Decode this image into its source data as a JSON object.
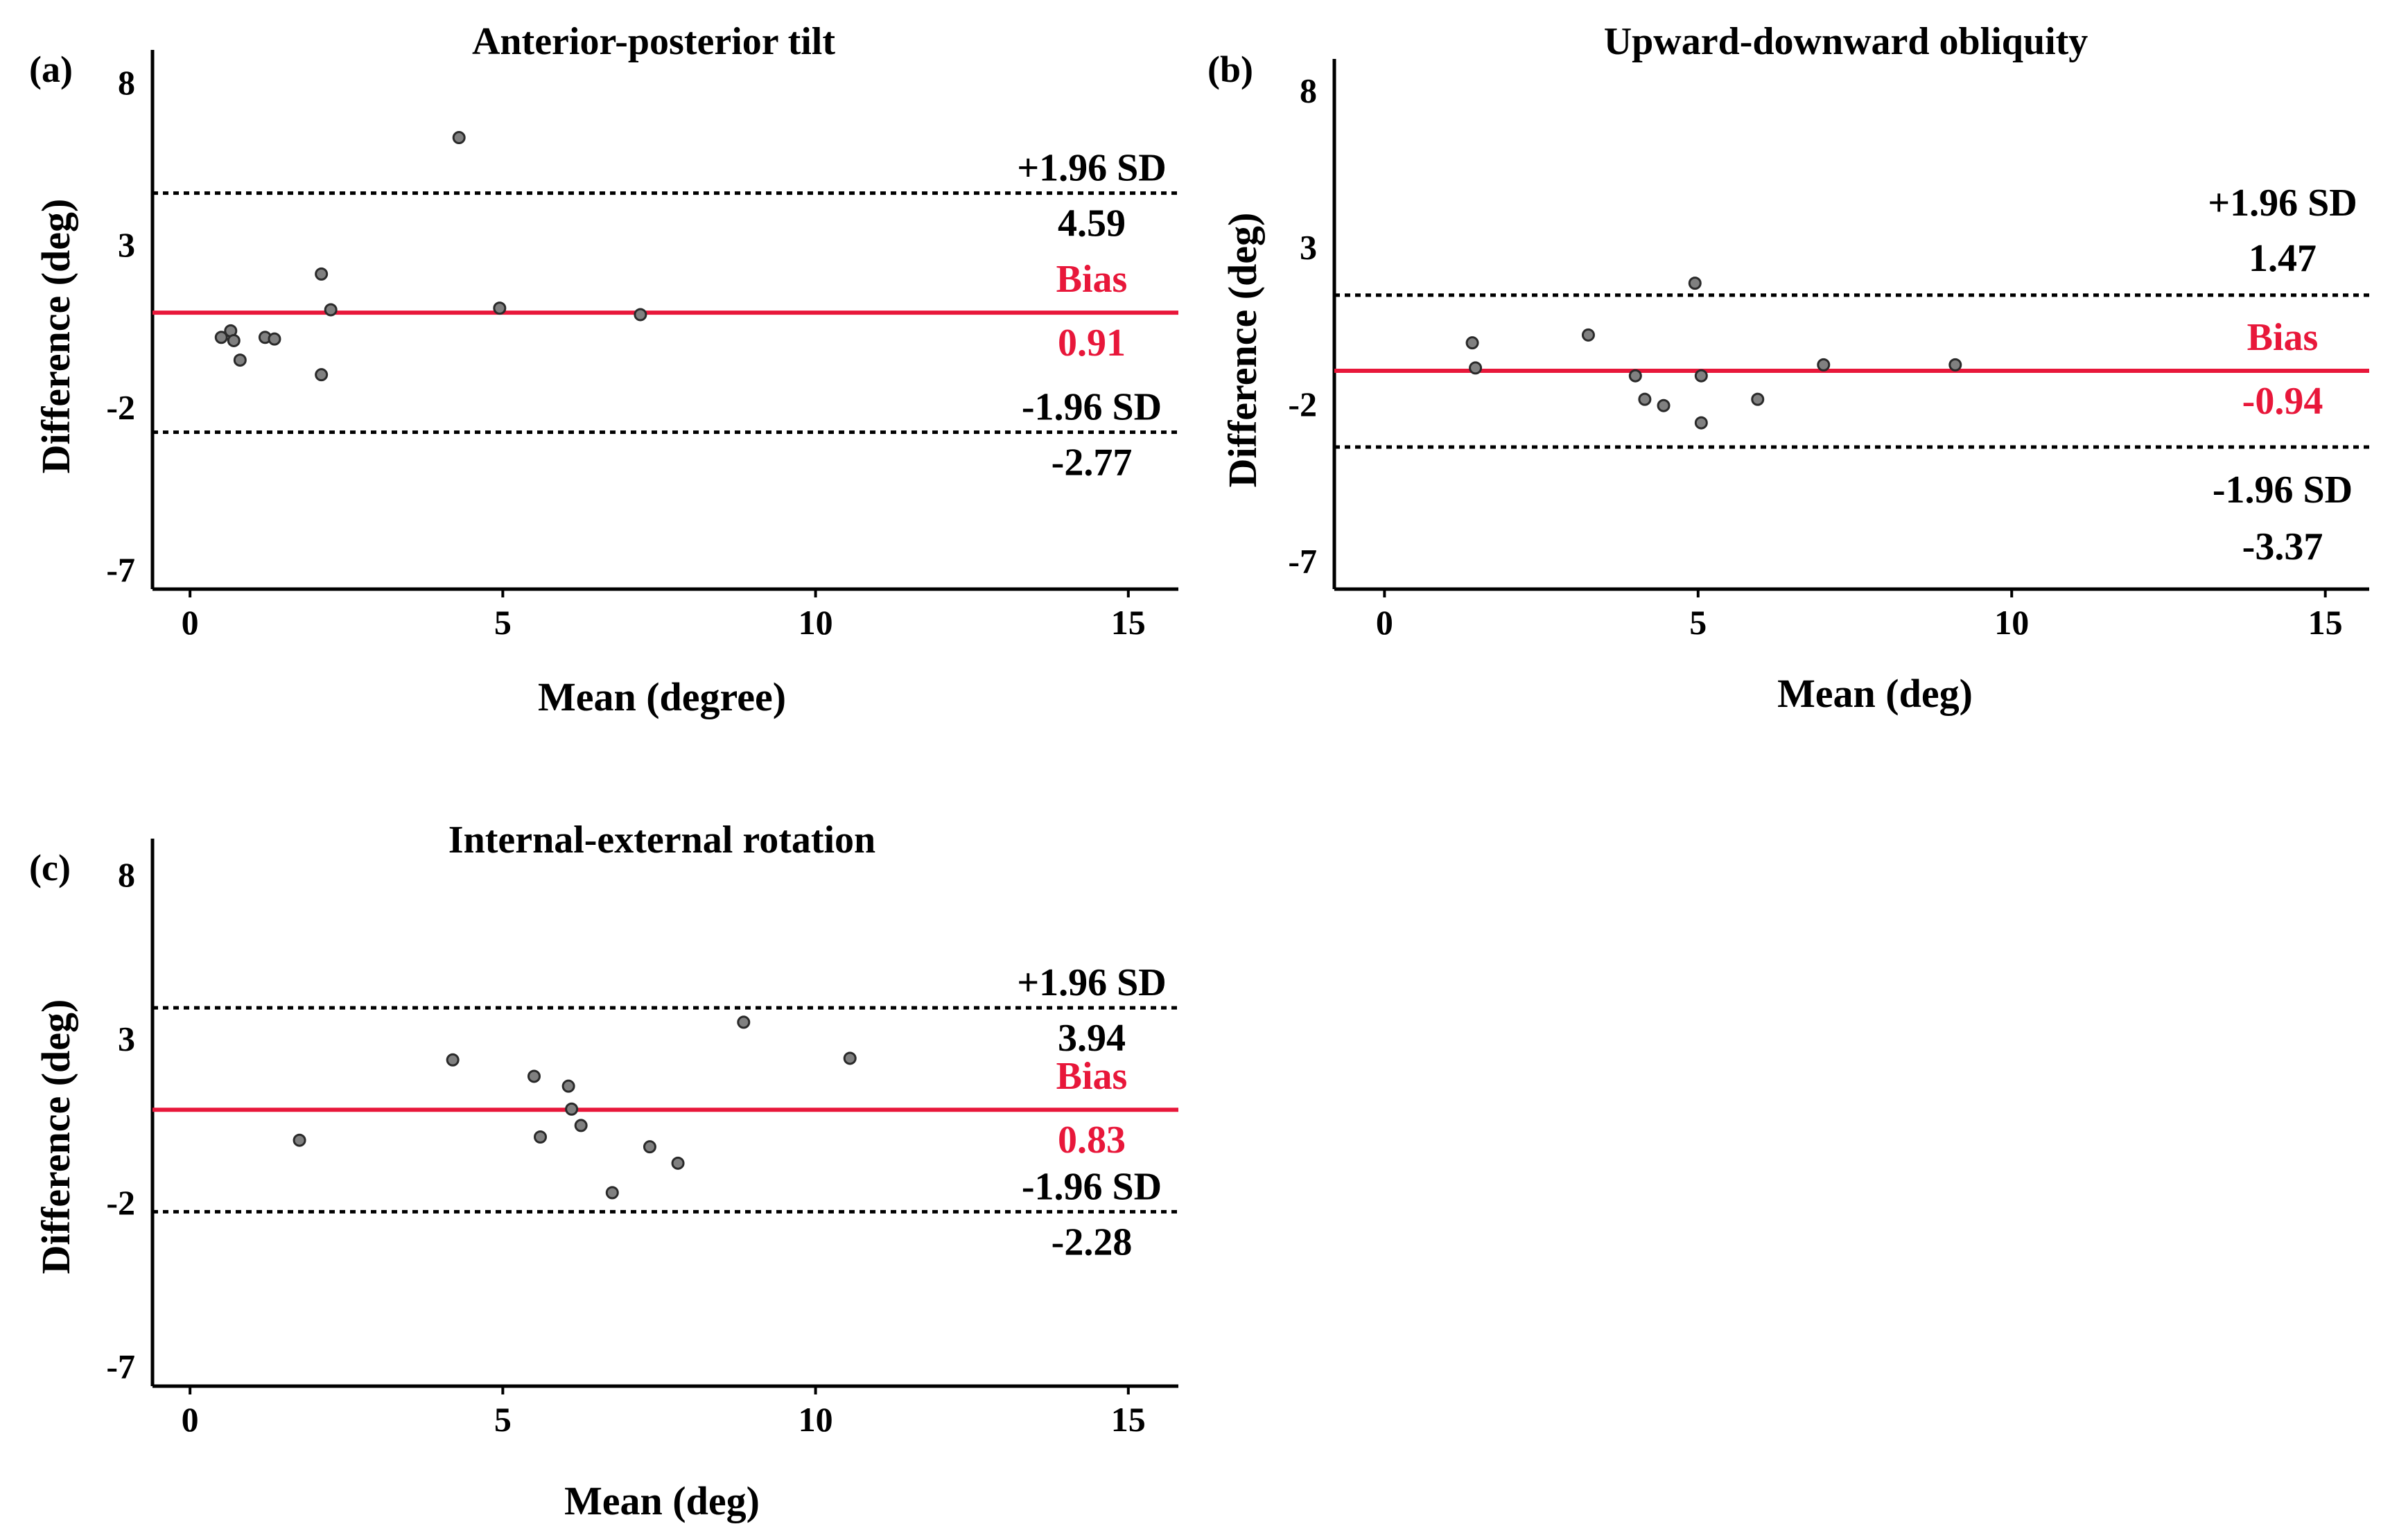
{
  "chart_data": [
    {
      "id": "a",
      "type": "scatter",
      "panel_label": "(a)",
      "title": "Anterior-posterior tilt",
      "xlabel": "Mean (degree)",
      "ylabel": "Difference (deg)",
      "xlim": [
        -0.6,
        15.8
      ],
      "ylim": [
        -7.6,
        9.0
      ],
      "xticks": [
        0,
        5,
        10,
        15
      ],
      "yticks": [
        8,
        3,
        -2,
        -7
      ],
      "grid": false,
      "bias": {
        "value": 0.91,
        "label": "Bias",
        "value_label": "0.91",
        "color": "#e8173a"
      },
      "upper_loa": {
        "value": 4.59,
        "label": "+1.96 SD",
        "value_label": "4.59"
      },
      "lower_loa": {
        "value": -2.77,
        "label": "-1.96 SD",
        "value_label": "-2.77"
      },
      "points": [
        {
          "x": 0.5,
          "y": 0.15
        },
        {
          "x": 0.65,
          "y": 0.35
        },
        {
          "x": 0.7,
          "y": 0.05
        },
        {
          "x": 0.8,
          "y": -0.55
        },
        {
          "x": 1.2,
          "y": 0.15
        },
        {
          "x": 1.35,
          "y": 0.1
        },
        {
          "x": 2.1,
          "y": 2.1
        },
        {
          "x": 2.25,
          "y": 1.0
        },
        {
          "x": 2.1,
          "y": -1.0
        },
        {
          "x": 4.3,
          "y": 6.3
        },
        {
          "x": 4.95,
          "y": 1.05
        },
        {
          "x": 7.2,
          "y": 0.85
        }
      ]
    },
    {
      "id": "b",
      "type": "scatter",
      "panel_label": "(b)",
      "title": "Upward-downward obliquity",
      "xlabel": "Mean (deg)",
      "ylabel": "Difference (deg)",
      "xlim": [
        -0.8,
        15.7
      ],
      "ylim": [
        -7.9,
        9.0
      ],
      "xticks": [
        0,
        5,
        10,
        15
      ],
      "yticks": [
        8,
        3,
        -2,
        -7
      ],
      "grid": false,
      "bias": {
        "value": -0.94,
        "label": "Bias",
        "value_label": "-0.94",
        "color": "#e8173a"
      },
      "upper_loa": {
        "value": 1.47,
        "label": "+1.96 SD",
        "value_label": "1.47"
      },
      "lower_loa": {
        "value": -3.37,
        "label": "-1.96 SD",
        "value_label": "-3.37"
      },
      "points": [
        {
          "x": 1.4,
          "y": -0.05
        },
        {
          "x": 1.45,
          "y": -0.85
        },
        {
          "x": 3.25,
          "y": 0.2
        },
        {
          "x": 4.0,
          "y": -1.1
        },
        {
          "x": 4.15,
          "y": -1.85
        },
        {
          "x": 4.45,
          "y": -2.05
        },
        {
          "x": 4.95,
          "y": 1.85
        },
        {
          "x": 5.05,
          "y": -1.1
        },
        {
          "x": 5.05,
          "y": -2.6
        },
        {
          "x": 5.95,
          "y": -1.85
        },
        {
          "x": 7.0,
          "y": -0.75
        },
        {
          "x": 9.1,
          "y": -0.75
        }
      ]
    },
    {
      "id": "c",
      "type": "scatter",
      "panel_label": "(c)",
      "title": "Internal-external rotation",
      "xlabel": "Mean (deg)",
      "ylabel": "Difference (deg)",
      "xlim": [
        -0.6,
        15.8
      ],
      "ylim": [
        -7.6,
        9.1
      ],
      "xticks": [
        0,
        5,
        10,
        15
      ],
      "yticks": [
        8,
        3,
        -2,
        -7
      ],
      "grid": false,
      "bias": {
        "value": 0.83,
        "label": "Bias",
        "value_label": "0.83",
        "color": "#e8173a"
      },
      "upper_loa": {
        "value": 3.94,
        "label": "+1.96 SD",
        "value_label": "3.94"
      },
      "lower_loa": {
        "value": -2.28,
        "label": "-1.96 SD",
        "value_label": "-2.28"
      },
      "points": [
        {
          "x": 1.75,
          "y": -0.1
        },
        {
          "x": 4.2,
          "y": 2.35
        },
        {
          "x": 5.5,
          "y": 1.85
        },
        {
          "x": 5.6,
          "y": -0.0
        },
        {
          "x": 6.05,
          "y": 1.55
        },
        {
          "x": 6.1,
          "y": 0.85
        },
        {
          "x": 6.25,
          "y": 0.35
        },
        {
          "x": 6.75,
          "y": -1.7
        },
        {
          "x": 7.35,
          "y": -0.3
        },
        {
          "x": 7.8,
          "y": -0.8
        },
        {
          "x": 8.85,
          "y": 3.5
        },
        {
          "x": 10.55,
          "y": 2.4
        }
      ]
    }
  ]
}
